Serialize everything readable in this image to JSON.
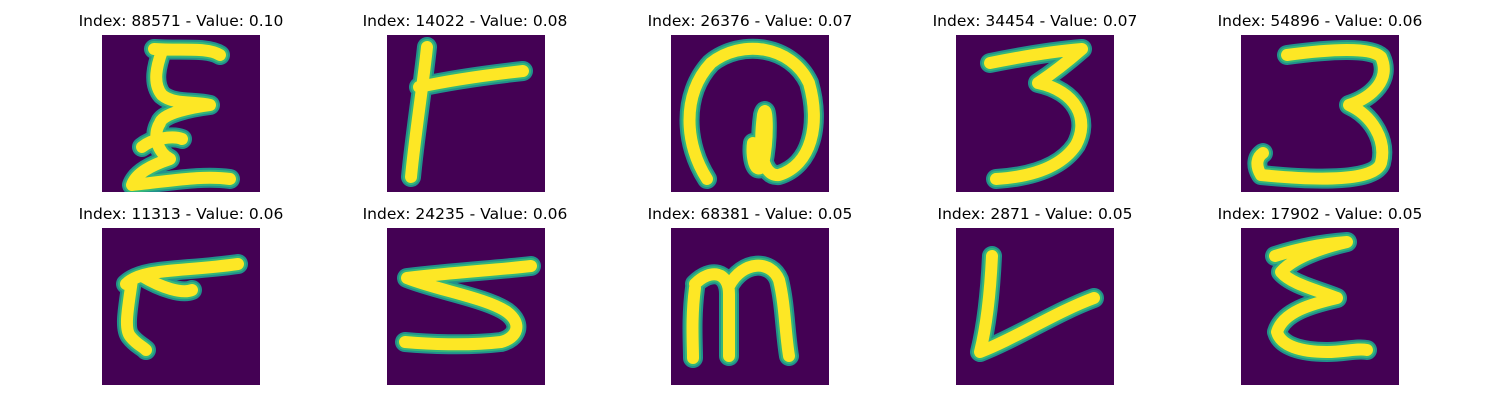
{
  "colors": {
    "background": "#440154",
    "stroke_core": "#fde725",
    "stroke_edge": "#35b779",
    "stroke_halo": "#21918c"
  },
  "panels": [
    {
      "title": "Index: 88571 - Value: 0.10",
      "glyph": "epsilon-like-character"
    },
    {
      "title": "Index: 14022 - Value: 0.08",
      "glyph": "r-like-character"
    },
    {
      "title": "Index: 26376 - Value: 0.07",
      "glyph": "at-sign-like-character"
    },
    {
      "title": "Index: 34454 - Value: 0.07",
      "glyph": "digit-three"
    },
    {
      "title": "Index: 54896 - Value: 0.06",
      "glyph": "digit-three"
    },
    {
      "title": "Index: 11313 - Value: 0.06",
      "glyph": "r-like-character"
    },
    {
      "title": "Index: 24235 - Value: 0.06",
      "glyph": "digit-five-like-character"
    },
    {
      "title": "Index: 68381 - Value: 0.05",
      "glyph": "letter-m"
    },
    {
      "title": "Index: 2871 - Value: 0.05",
      "glyph": "letter-v-like-character"
    },
    {
      "title": "Index: 17902 - Value: 0.05",
      "glyph": "epsilon-like-character"
    }
  ]
}
